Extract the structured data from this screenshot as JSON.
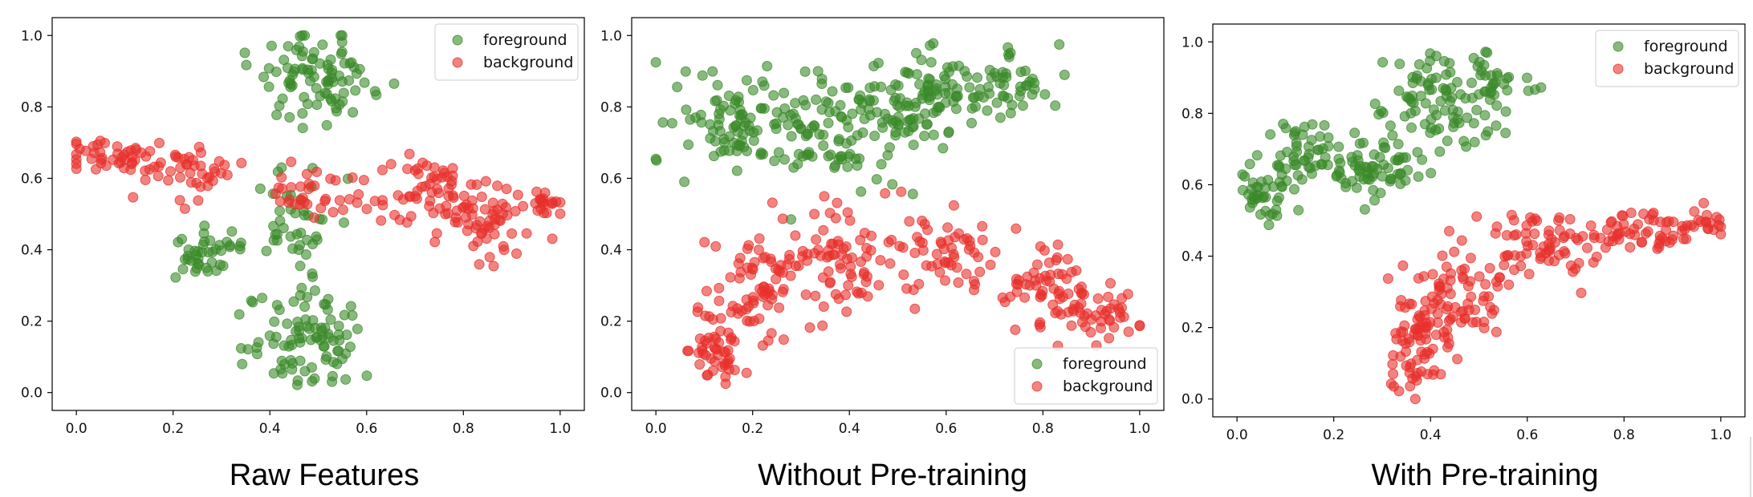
{
  "colors": {
    "foreground": "#3a8a2a",
    "background": "#e8302c",
    "axis": "#000000"
  },
  "chart_data": [
    {
      "type": "scatter",
      "title": "Raw Features",
      "legend_position": "top-right",
      "xlim": [
        0.0,
        1.0
      ],
      "ylim": [
        0.0,
        1.0
      ],
      "xticks": [
        "0.0",
        "0.2",
        "0.4",
        "0.6",
        "0.8",
        "1.0"
      ],
      "yticks": [
        "0.0",
        "0.2",
        "0.4",
        "0.6",
        "0.8",
        "1.0"
      ],
      "series": [
        {
          "name": "foreground",
          "clusters": [
            {
              "cx": 0.5,
              "cy": 0.88,
              "sx": 0.06,
              "sy": 0.06,
              "n": 90
            },
            {
              "cx": 0.45,
              "cy": 0.5,
              "sx": 0.05,
              "sy": 0.09,
              "n": 45
            },
            {
              "cx": 0.27,
              "cy": 0.39,
              "sx": 0.05,
              "sy": 0.04,
              "n": 40
            },
            {
              "cx": 0.48,
              "cy": 0.15,
              "sx": 0.06,
              "sy": 0.07,
              "n": 90
            }
          ]
        },
        {
          "name": "background",
          "clusters": [
            {
              "cx": 0.07,
              "cy": 0.66,
              "sx": 0.05,
              "sy": 0.03,
              "n": 45
            },
            {
              "cx": 0.24,
              "cy": 0.62,
              "sx": 0.05,
              "sy": 0.04,
              "n": 40
            },
            {
              "cx": 0.5,
              "cy": 0.56,
              "sx": 0.05,
              "sy": 0.03,
              "n": 35
            },
            {
              "cx": 0.72,
              "cy": 0.55,
              "sx": 0.06,
              "sy": 0.05,
              "n": 60
            },
            {
              "cx": 0.85,
              "cy": 0.48,
              "sx": 0.05,
              "sy": 0.05,
              "n": 55
            },
            {
              "cx": 0.97,
              "cy": 0.53,
              "sx": 0.02,
              "sy": 0.02,
              "n": 20
            }
          ]
        }
      ]
    },
    {
      "type": "scatter",
      "title": "Without Pre-training",
      "legend_position": "lower-right",
      "xlim": [
        0.0,
        1.0
      ],
      "ylim": [
        0.0,
        1.0
      ],
      "xticks": [
        "0.0",
        "0.2",
        "0.4",
        "0.6",
        "0.8",
        "1.0"
      ],
      "yticks": [
        "0.0",
        "0.2",
        "0.4",
        "0.6",
        "0.8",
        "1.0"
      ],
      "series": [
        {
          "name": "foreground",
          "clusters": [
            {
              "cx": 0.15,
              "cy": 0.74,
              "sx": 0.07,
              "sy": 0.07,
              "n": 90
            },
            {
              "cx": 0.38,
              "cy": 0.74,
              "sx": 0.08,
              "sy": 0.08,
              "n": 110
            },
            {
              "cx": 0.58,
              "cy": 0.84,
              "sx": 0.07,
              "sy": 0.07,
              "n": 90
            },
            {
              "cx": 0.74,
              "cy": 0.87,
              "sx": 0.04,
              "sy": 0.05,
              "n": 40
            }
          ]
        },
        {
          "name": "background",
          "clusters": [
            {
              "cx": 0.13,
              "cy": 0.12,
              "sx": 0.03,
              "sy": 0.06,
              "n": 50
            },
            {
              "cx": 0.22,
              "cy": 0.3,
              "sx": 0.05,
              "sy": 0.08,
              "n": 70
            },
            {
              "cx": 0.38,
              "cy": 0.38,
              "sx": 0.06,
              "sy": 0.08,
              "n": 70
            },
            {
              "cx": 0.6,
              "cy": 0.4,
              "sx": 0.07,
              "sy": 0.07,
              "n": 60
            },
            {
              "cx": 0.82,
              "cy": 0.32,
              "sx": 0.05,
              "sy": 0.05,
              "n": 50
            },
            {
              "cx": 0.9,
              "cy": 0.22,
              "sx": 0.05,
              "sy": 0.04,
              "n": 45
            }
          ]
        }
      ]
    },
    {
      "type": "scatter",
      "title": "With Pre-training",
      "legend_position": "top-right",
      "xlim": [
        0.0,
        1.0
      ],
      "ylim": [
        0.0,
        1.0
      ],
      "xticks": [
        "0.0",
        "0.2",
        "0.4",
        "0.6",
        "0.8",
        "1.0"
      ],
      "yticks": [
        "0.0",
        "0.2",
        "0.4",
        "0.6",
        "0.8",
        "1.0"
      ],
      "series": [
        {
          "name": "foreground",
          "clusters": [
            {
              "cx": 0.06,
              "cy": 0.58,
              "sx": 0.03,
              "sy": 0.04,
              "n": 40
            },
            {
              "cx": 0.14,
              "cy": 0.68,
              "sx": 0.04,
              "sy": 0.05,
              "n": 50
            },
            {
              "cx": 0.28,
              "cy": 0.64,
              "sx": 0.05,
              "sy": 0.05,
              "n": 60
            },
            {
              "cx": 0.4,
              "cy": 0.82,
              "sx": 0.05,
              "sy": 0.08,
              "n": 80
            },
            {
              "cx": 0.53,
              "cy": 0.88,
              "sx": 0.04,
              "sy": 0.05,
              "n": 40
            }
          ]
        },
        {
          "name": "background",
          "clusters": [
            {
              "cx": 0.38,
              "cy": 0.17,
              "sx": 0.03,
              "sy": 0.08,
              "n": 80
            },
            {
              "cx": 0.46,
              "cy": 0.28,
              "sx": 0.05,
              "sy": 0.06,
              "n": 60
            },
            {
              "cx": 0.64,
              "cy": 0.43,
              "sx": 0.07,
              "sy": 0.05,
              "n": 70
            },
            {
              "cx": 0.85,
              "cy": 0.47,
              "sx": 0.06,
              "sy": 0.03,
              "n": 50
            },
            {
              "cx": 0.97,
              "cy": 0.49,
              "sx": 0.03,
              "sy": 0.02,
              "n": 20
            }
          ]
        }
      ]
    }
  ]
}
